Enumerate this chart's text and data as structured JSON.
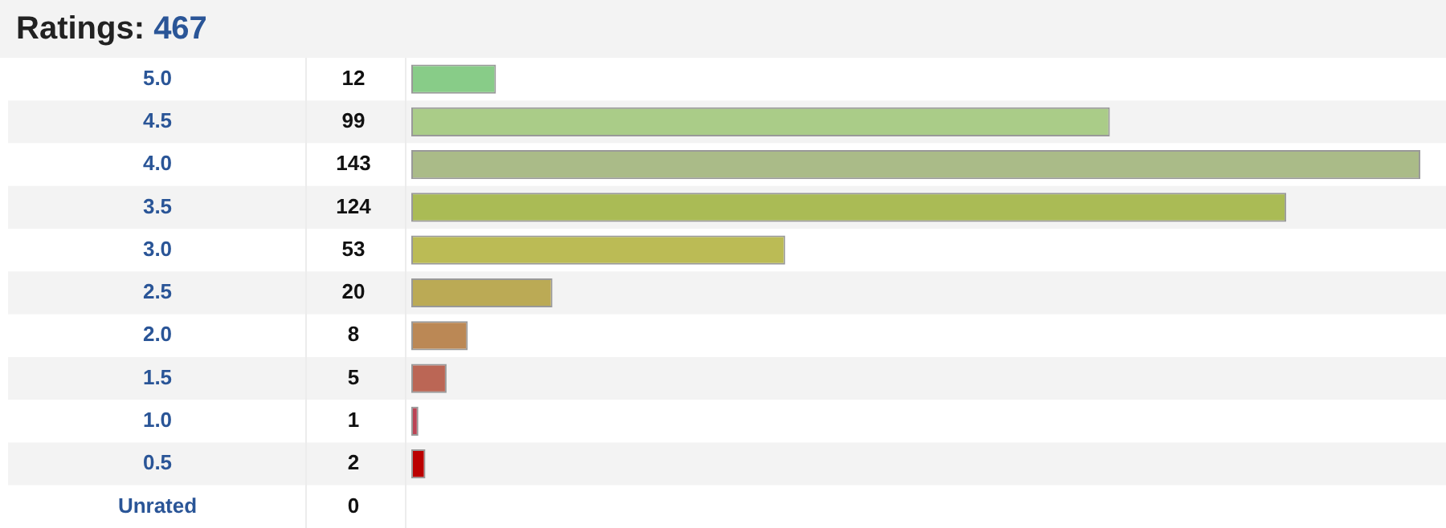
{
  "chart_data": {
    "type": "bar",
    "orientation": "horizontal",
    "title": "Ratings: 467",
    "categories": [
      "5.0",
      "4.5",
      "4.0",
      "3.5",
      "3.0",
      "2.5",
      "2.0",
      "1.5",
      "1.0",
      "0.5",
      "Unrated"
    ],
    "values": [
      12,
      99,
      143,
      124,
      53,
      20,
      8,
      5,
      1,
      2,
      0
    ],
    "colors": [
      "#88cc88",
      "#aacc88",
      "#aabb88",
      "#aabb55",
      "#bbbb55",
      "#bbaa55",
      "#bb8855",
      "#bb6655",
      "#bb4455",
      "#bb0000",
      "#ffffff"
    ],
    "data_labels": true
  }
}
